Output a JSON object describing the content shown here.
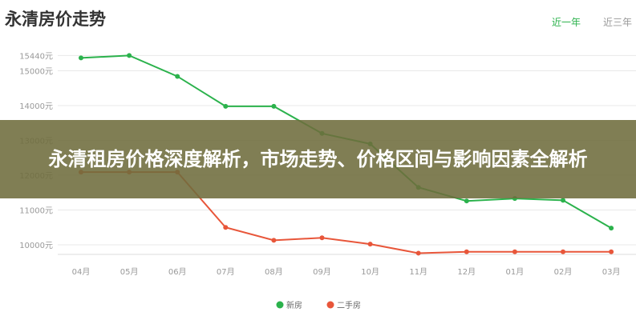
{
  "header": {
    "title": "永清房价走势",
    "tabs": [
      {
        "label": "近一年",
        "active": true
      },
      {
        "label": "近三年",
        "active": false
      }
    ]
  },
  "banner": {
    "text": "永清租房价格深度解析，市场走势、价格区间与影响因素全解析"
  },
  "chart_data": {
    "type": "line",
    "categories": [
      "04月",
      "05月",
      "06月",
      "07月",
      "08月",
      "09月",
      "10月",
      "11月",
      "12月",
      "01月",
      "02月",
      "03月"
    ],
    "y_ticks": [
      "15440元",
      "15000元",
      "14000元",
      "13000元",
      "12000元",
      "11000元",
      "10000元"
    ],
    "y_tick_values": [
      15440,
      15000,
      14000,
      13000,
      12000,
      11000,
      10000
    ],
    "ylim": [
      9720,
      15440
    ],
    "grid": true,
    "legend": "bottom",
    "series": [
      {
        "name": "新房",
        "color": "#2bb24c",
        "values": [
          15370,
          15440,
          14840,
          13980,
          13980,
          13200,
          12900,
          11650,
          11260,
          11330,
          11280,
          10480
        ]
      },
      {
        "name": "二手房",
        "color": "#e8563a",
        "values": [
          12090,
          12090,
          12090,
          10500,
          10130,
          10200,
          10020,
          9760,
          9800,
          9800,
          9800,
          9800
        ]
      }
    ]
  }
}
